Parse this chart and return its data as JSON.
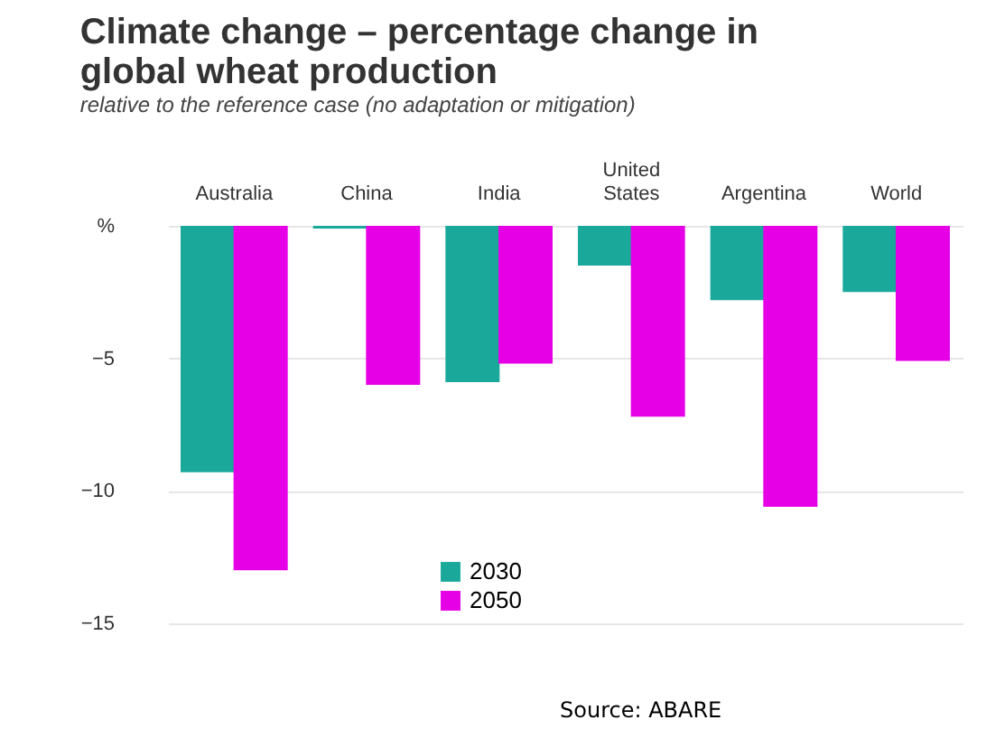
{
  "chart_data": {
    "type": "bar",
    "title": "Climate change – percentage change in global wheat production",
    "subtitle": "relative to the reference case (no adaptation or mitigation)",
    "categories": [
      "Australia",
      "China",
      "India",
      "United States",
      "Argentina",
      "World"
    ],
    "series": [
      {
        "name": "2030",
        "color": "#1aa89a",
        "values": [
          -9.3,
          -0.1,
          -5.9,
          -1.5,
          -2.8,
          -2.5
        ]
      },
      {
        "name": "2050",
        "color": "#e600e6",
        "values": [
          -13.0,
          -6.0,
          -5.2,
          -7.2,
          -10.6,
          -5.1
        ]
      }
    ],
    "ylim": [
      -15,
      0
    ],
    "yticks": [
      {
        "value": 0,
        "label": "%"
      },
      -5,
      -10,
      -15
    ],
    "grid": "y",
    "legend": "bottom left",
    "annotations": [
      "Source: ABARE"
    ]
  }
}
